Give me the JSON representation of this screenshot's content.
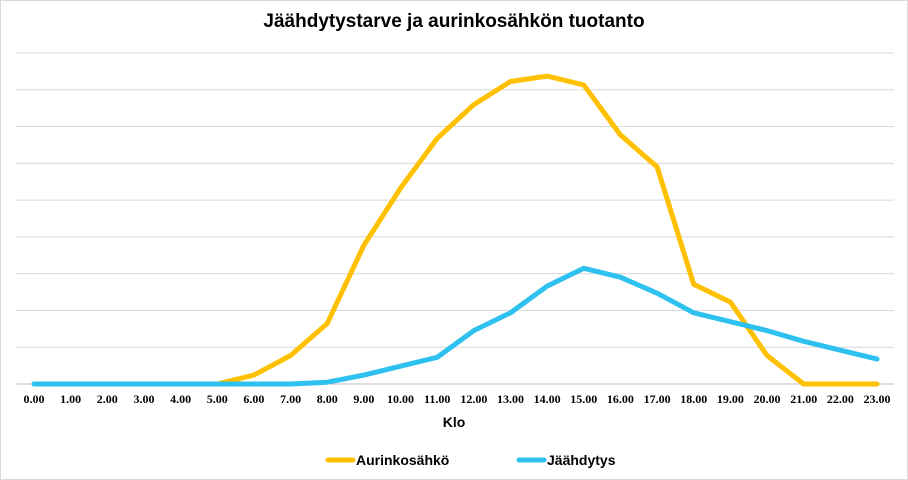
{
  "chart_data": {
    "type": "line",
    "title": "Jäähdytystarve ja aurinkosähkön tuotanto",
    "xlabel": "Klo",
    "ylabel": "",
    "categories": [
      "0.00",
      "1.00",
      "2.00",
      "3.00",
      "4.00",
      "5.00",
      "6.00",
      "7.00",
      "8.00",
      "9.00",
      "10.00",
      "11.00",
      "12.00",
      "13.00",
      "14.00",
      "15.00",
      "16.00",
      "17.00",
      "18.00",
      "19.00",
      "20.00",
      "21.00",
      "22.00",
      "23.00"
    ],
    "ylim": [
      0,
      9.3
    ],
    "y_tick_labels_shown": false,
    "grid": "horizontal",
    "legend_position": "bottom",
    "series": [
      {
        "name": "Aurinkosähkö",
        "color": "#FFC000",
        "values": [
          0,
          0,
          0,
          0,
          0,
          0,
          0.25,
          0.8,
          1.7,
          3.9,
          5.5,
          6.9,
          7.85,
          8.5,
          8.65,
          8.4,
          7.0,
          6.1,
          2.8,
          2.3,
          0.8,
          0,
          0,
          0
        ]
      },
      {
        "name": "Jäähdytys",
        "color": "#2EC1F0",
        "values": [
          0,
          0,
          0,
          0,
          0,
          0,
          0,
          0,
          0.05,
          0.25,
          0.5,
          0.75,
          1.5,
          2.0,
          2.75,
          3.25,
          3.0,
          2.55,
          2.0,
          1.75,
          1.5,
          1.2,
          0.95,
          0.7
        ]
      }
    ]
  }
}
